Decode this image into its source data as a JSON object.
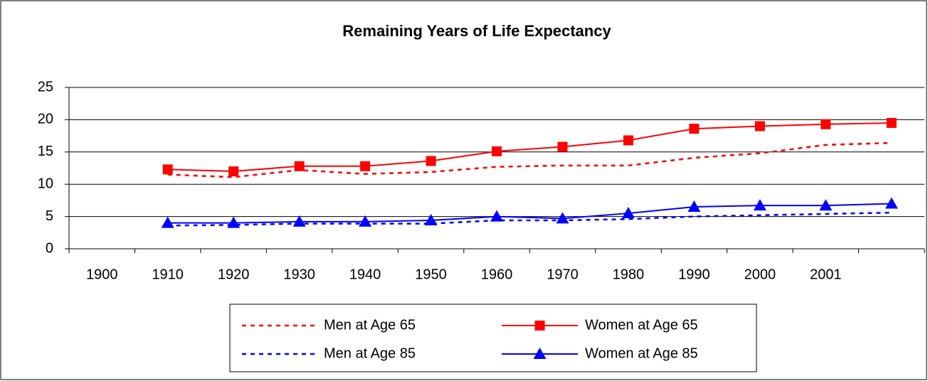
{
  "chart_data": {
    "type": "line",
    "title": "Remaining Years of Life Expectancy",
    "categories": [
      "1900",
      "1910",
      "1920",
      "1930",
      "1940",
      "1950",
      "1960",
      "1970",
      "1980",
      "1990",
      "2000",
      "2001",
      null
    ],
    "series": [
      {
        "name": "Men at Age 65",
        "color": "#ff0000",
        "style": "dotted",
        "marker": "none",
        "values": [
          null,
          11.5,
          11.1,
          12.2,
          11.6,
          11.9,
          12.7,
          12.9,
          12.9,
          14.1,
          14.8,
          16.1,
          16.4
        ]
      },
      {
        "name": "Women at Age 65",
        "color": "#ff0000",
        "style": "solid",
        "marker": "square",
        "values": [
          null,
          12.3,
          12.0,
          12.8,
          12.8,
          13.6,
          15.1,
          15.8,
          16.8,
          18.6,
          19.0,
          19.3,
          19.5
        ]
      },
      {
        "name": "Men at Age 85",
        "color": "#0000ff",
        "style": "dotted",
        "marker": "none",
        "values": [
          null,
          3.6,
          3.7,
          3.9,
          3.9,
          3.9,
          4.4,
          4.4,
          4.6,
          5.0,
          5.2,
          5.4,
          5.6
        ]
      },
      {
        "name": "Women at Age 85",
        "color": "#0000ff",
        "style": "solid",
        "marker": "triangle",
        "values": [
          null,
          4.0,
          4.0,
          4.2,
          4.2,
          4.4,
          5.0,
          4.7,
          5.5,
          6.5,
          6.7,
          6.7,
          7.0
        ]
      }
    ],
    "ylim": [
      0,
      25
    ],
    "yticks": [
      0,
      5,
      10,
      15,
      20,
      25
    ],
    "grid": true,
    "legend": "bottom"
  }
}
